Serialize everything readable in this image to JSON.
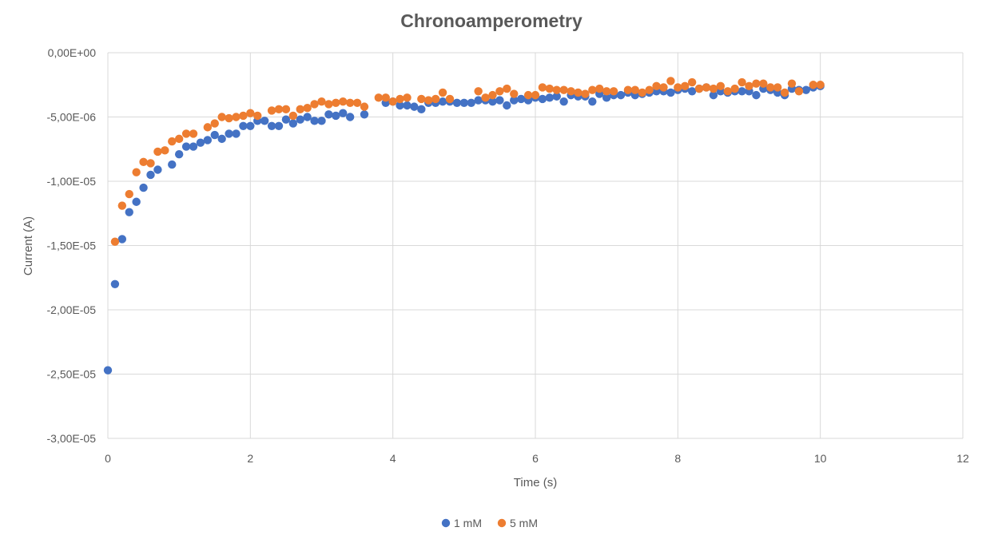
{
  "chart_data": {
    "type": "scatter",
    "title": "Chronoamperometry",
    "xlabel": "Time (s)",
    "ylabel": "Current (A)",
    "xlim": [
      0,
      12
    ],
    "ylim": [
      -3e-05,
      0
    ],
    "x_ticks": [
      0,
      2,
      4,
      6,
      8,
      10,
      12
    ],
    "x_tick_labels": [
      "0",
      "2",
      "4",
      "6",
      "8",
      "10",
      "12"
    ],
    "y_ticks": [
      0,
      -5e-06,
      -1e-05,
      -1.5e-05,
      -2e-05,
      -2.5e-05,
      -3e-05
    ],
    "y_tick_labels": [
      "0,00E+00",
      "-5,00E-06",
      "-1,00E-05",
      "-1,50E-05",
      "-2,00E-05",
      "-2,50E-05",
      "-3,00E-05"
    ],
    "grid": true,
    "legend_position": "bottom",
    "series": [
      {
        "name": "1 mM",
        "color": "#4472C4",
        "points": [
          [
            0.0,
            -2.47e-05
          ],
          [
            0.1,
            -1.8e-05
          ],
          [
            0.2,
            -1.45e-05
          ],
          [
            0.3,
            -1.24e-05
          ],
          [
            0.4,
            -1.16e-05
          ],
          [
            0.5,
            -1.05e-05
          ],
          [
            0.6,
            -9.5e-06
          ],
          [
            0.7,
            -9.1e-06
          ],
          [
            0.9,
            -8.7e-06
          ],
          [
            1.0,
            -7.9e-06
          ],
          [
            1.1,
            -7.3e-06
          ],
          [
            1.2,
            -7.3e-06
          ],
          [
            1.3,
            -7e-06
          ],
          [
            1.4,
            -6.8e-06
          ],
          [
            1.5,
            -6.4e-06
          ],
          [
            1.6,
            -6.7e-06
          ],
          [
            1.7,
            -6.3e-06
          ],
          [
            1.8,
            -6.3e-06
          ],
          [
            1.9,
            -5.7e-06
          ],
          [
            2.0,
            -5.7e-06
          ],
          [
            2.1,
            -5.3e-06
          ],
          [
            2.2,
            -5.3e-06
          ],
          [
            2.3,
            -5.7e-06
          ],
          [
            2.4,
            -5.7e-06
          ],
          [
            2.5,
            -5.2e-06
          ],
          [
            2.6,
            -5.5e-06
          ],
          [
            2.7,
            -5.2e-06
          ],
          [
            2.8,
            -5e-06
          ],
          [
            2.9,
            -5.3e-06
          ],
          [
            3.0,
            -5.3e-06
          ],
          [
            3.1,
            -4.8e-06
          ],
          [
            3.2,
            -4.9e-06
          ],
          [
            3.3,
            -4.7e-06
          ],
          [
            3.4,
            -5e-06
          ],
          [
            3.6,
            -4.8e-06
          ],
          [
            3.9,
            -3.9e-06
          ],
          [
            4.0,
            -3.8e-06
          ],
          [
            4.1,
            -4.1e-06
          ],
          [
            4.2,
            -4.1e-06
          ],
          [
            4.3,
            -4.2e-06
          ],
          [
            4.4,
            -4.4e-06
          ],
          [
            4.5,
            -3.9e-06
          ],
          [
            4.6,
            -3.9e-06
          ],
          [
            4.7,
            -3.8e-06
          ],
          [
            4.8,
            -3.8e-06
          ],
          [
            4.9,
            -3.9e-06
          ],
          [
            5.0,
            -3.9e-06
          ],
          [
            5.1,
            -3.9e-06
          ],
          [
            5.2,
            -3.7e-06
          ],
          [
            5.3,
            -3.7e-06
          ],
          [
            5.4,
            -3.8e-06
          ],
          [
            5.5,
            -3.7e-06
          ],
          [
            5.6,
            -4.1e-06
          ],
          [
            5.7,
            -3.7e-06
          ],
          [
            5.8,
            -3.6e-06
          ],
          [
            5.9,
            -3.7e-06
          ],
          [
            6.0,
            -3.5e-06
          ],
          [
            6.1,
            -3.6e-06
          ],
          [
            6.2,
            -3.5e-06
          ],
          [
            6.3,
            -3.4e-06
          ],
          [
            6.4,
            -3.8e-06
          ],
          [
            6.5,
            -3.3e-06
          ],
          [
            6.6,
            -3.4e-06
          ],
          [
            6.7,
            -3.4e-06
          ],
          [
            6.8,
            -3.8e-06
          ],
          [
            6.9,
            -3.2e-06
          ],
          [
            7.0,
            -3.5e-06
          ],
          [
            7.1,
            -3.3e-06
          ],
          [
            7.2,
            -3.3e-06
          ],
          [
            7.3,
            -3.1e-06
          ],
          [
            7.4,
            -3.3e-06
          ],
          [
            7.5,
            -3.2e-06
          ],
          [
            7.6,
            -3.1e-06
          ],
          [
            7.7,
            -3e-06
          ],
          [
            7.8,
            -3e-06
          ],
          [
            7.9,
            -3.1e-06
          ],
          [
            8.0,
            -2.9e-06
          ],
          [
            8.1,
            -2.8e-06
          ],
          [
            8.2,
            -3e-06
          ],
          [
            8.3,
            -2.8e-06
          ],
          [
            8.4,
            -2.7e-06
          ],
          [
            8.5,
            -3.3e-06
          ],
          [
            8.6,
            -3e-06
          ],
          [
            8.7,
            -3.1e-06
          ],
          [
            8.8,
            -3e-06
          ],
          [
            8.9,
            -3e-06
          ],
          [
            9.0,
            -3e-06
          ],
          [
            9.1,
            -3.3e-06
          ],
          [
            9.2,
            -2.8e-06
          ],
          [
            9.3,
            -2.9e-06
          ],
          [
            9.4,
            -3.1e-06
          ],
          [
            9.5,
            -3.3e-06
          ],
          [
            9.6,
            -2.8e-06
          ],
          [
            9.7,
            -2.9e-06
          ],
          [
            9.8,
            -2.9e-06
          ],
          [
            9.9,
            -2.7e-06
          ],
          [
            10.0,
            -2.6e-06
          ]
        ]
      },
      {
        "name": "5 mM",
        "color": "#ED7D31",
        "points": [
          [
            0.1,
            -1.47e-05
          ],
          [
            0.2,
            -1.19e-05
          ],
          [
            0.3,
            -1.1e-05
          ],
          [
            0.4,
            -9.3e-06
          ],
          [
            0.5,
            -8.5e-06
          ],
          [
            0.6,
            -8.6e-06
          ],
          [
            0.7,
            -7.7e-06
          ],
          [
            0.8,
            -7.6e-06
          ],
          [
            0.9,
            -6.9e-06
          ],
          [
            1.0,
            -6.7e-06
          ],
          [
            1.1,
            -6.3e-06
          ],
          [
            1.2,
            -6.3e-06
          ],
          [
            1.4,
            -5.8e-06
          ],
          [
            1.5,
            -5.5e-06
          ],
          [
            1.6,
            -5e-06
          ],
          [
            1.7,
            -5.1e-06
          ],
          [
            1.8,
            -5e-06
          ],
          [
            1.9,
            -4.9e-06
          ],
          [
            2.0,
            -4.7e-06
          ],
          [
            2.1,
            -4.9e-06
          ],
          [
            2.3,
            -4.5e-06
          ],
          [
            2.4,
            -4.4e-06
          ],
          [
            2.5,
            -4.4e-06
          ],
          [
            2.6,
            -4.9e-06
          ],
          [
            2.7,
            -4.4e-06
          ],
          [
            2.8,
            -4.3e-06
          ],
          [
            2.9,
            -4e-06
          ],
          [
            3.0,
            -3.8e-06
          ],
          [
            3.1,
            -4e-06
          ],
          [
            3.2,
            -3.9e-06
          ],
          [
            3.3,
            -3.8e-06
          ],
          [
            3.4,
            -3.9e-06
          ],
          [
            3.5,
            -3.9e-06
          ],
          [
            3.6,
            -4.2e-06
          ],
          [
            3.8,
            -3.5e-06
          ],
          [
            3.9,
            -3.5e-06
          ],
          [
            4.0,
            -3.8e-06
          ],
          [
            4.1,
            -3.6e-06
          ],
          [
            4.2,
            -3.5e-06
          ],
          [
            4.4,
            -3.6e-06
          ],
          [
            4.5,
            -3.7e-06
          ],
          [
            4.6,
            -3.6e-06
          ],
          [
            4.7,
            -3.1e-06
          ],
          [
            4.8,
            -3.6e-06
          ],
          [
            5.2,
            -3e-06
          ],
          [
            5.3,
            -3.5e-06
          ],
          [
            5.4,
            -3.3e-06
          ],
          [
            5.5,
            -3e-06
          ],
          [
            5.6,
            -2.8e-06
          ],
          [
            5.7,
            -3.2e-06
          ],
          [
            5.9,
            -3.3e-06
          ],
          [
            6.0,
            -3.3e-06
          ],
          [
            6.1,
            -2.7e-06
          ],
          [
            6.2,
            -2.8e-06
          ],
          [
            6.3,
            -2.9e-06
          ],
          [
            6.4,
            -2.9e-06
          ],
          [
            6.5,
            -3e-06
          ],
          [
            6.6,
            -3.1e-06
          ],
          [
            6.7,
            -3.2e-06
          ],
          [
            6.8,
            -2.9e-06
          ],
          [
            6.9,
            -2.8e-06
          ],
          [
            7.0,
            -3e-06
          ],
          [
            7.1,
            -3e-06
          ],
          [
            7.3,
            -2.9e-06
          ],
          [
            7.4,
            -2.9e-06
          ],
          [
            7.5,
            -3.1e-06
          ],
          [
            7.6,
            -2.9e-06
          ],
          [
            7.7,
            -2.6e-06
          ],
          [
            7.8,
            -2.7e-06
          ],
          [
            7.9,
            -2.2e-06
          ],
          [
            8.0,
            -2.7e-06
          ],
          [
            8.1,
            -2.6e-06
          ],
          [
            8.2,
            -2.3e-06
          ],
          [
            8.3,
            -2.8e-06
          ],
          [
            8.4,
            -2.7e-06
          ],
          [
            8.5,
            -2.8e-06
          ],
          [
            8.6,
            -2.6e-06
          ],
          [
            8.7,
            -3e-06
          ],
          [
            8.8,
            -2.8e-06
          ],
          [
            8.9,
            -2.3e-06
          ],
          [
            9.0,
            -2.6e-06
          ],
          [
            9.1,
            -2.4e-06
          ],
          [
            9.2,
            -2.4e-06
          ],
          [
            9.3,
            -2.7e-06
          ],
          [
            9.4,
            -2.7e-06
          ],
          [
            9.5,
            -3.1e-06
          ],
          [
            9.6,
            -2.4e-06
          ],
          [
            9.7,
            -3e-06
          ],
          [
            9.9,
            -2.5e-06
          ],
          [
            10.0,
            -2.5e-06
          ]
        ]
      }
    ]
  }
}
